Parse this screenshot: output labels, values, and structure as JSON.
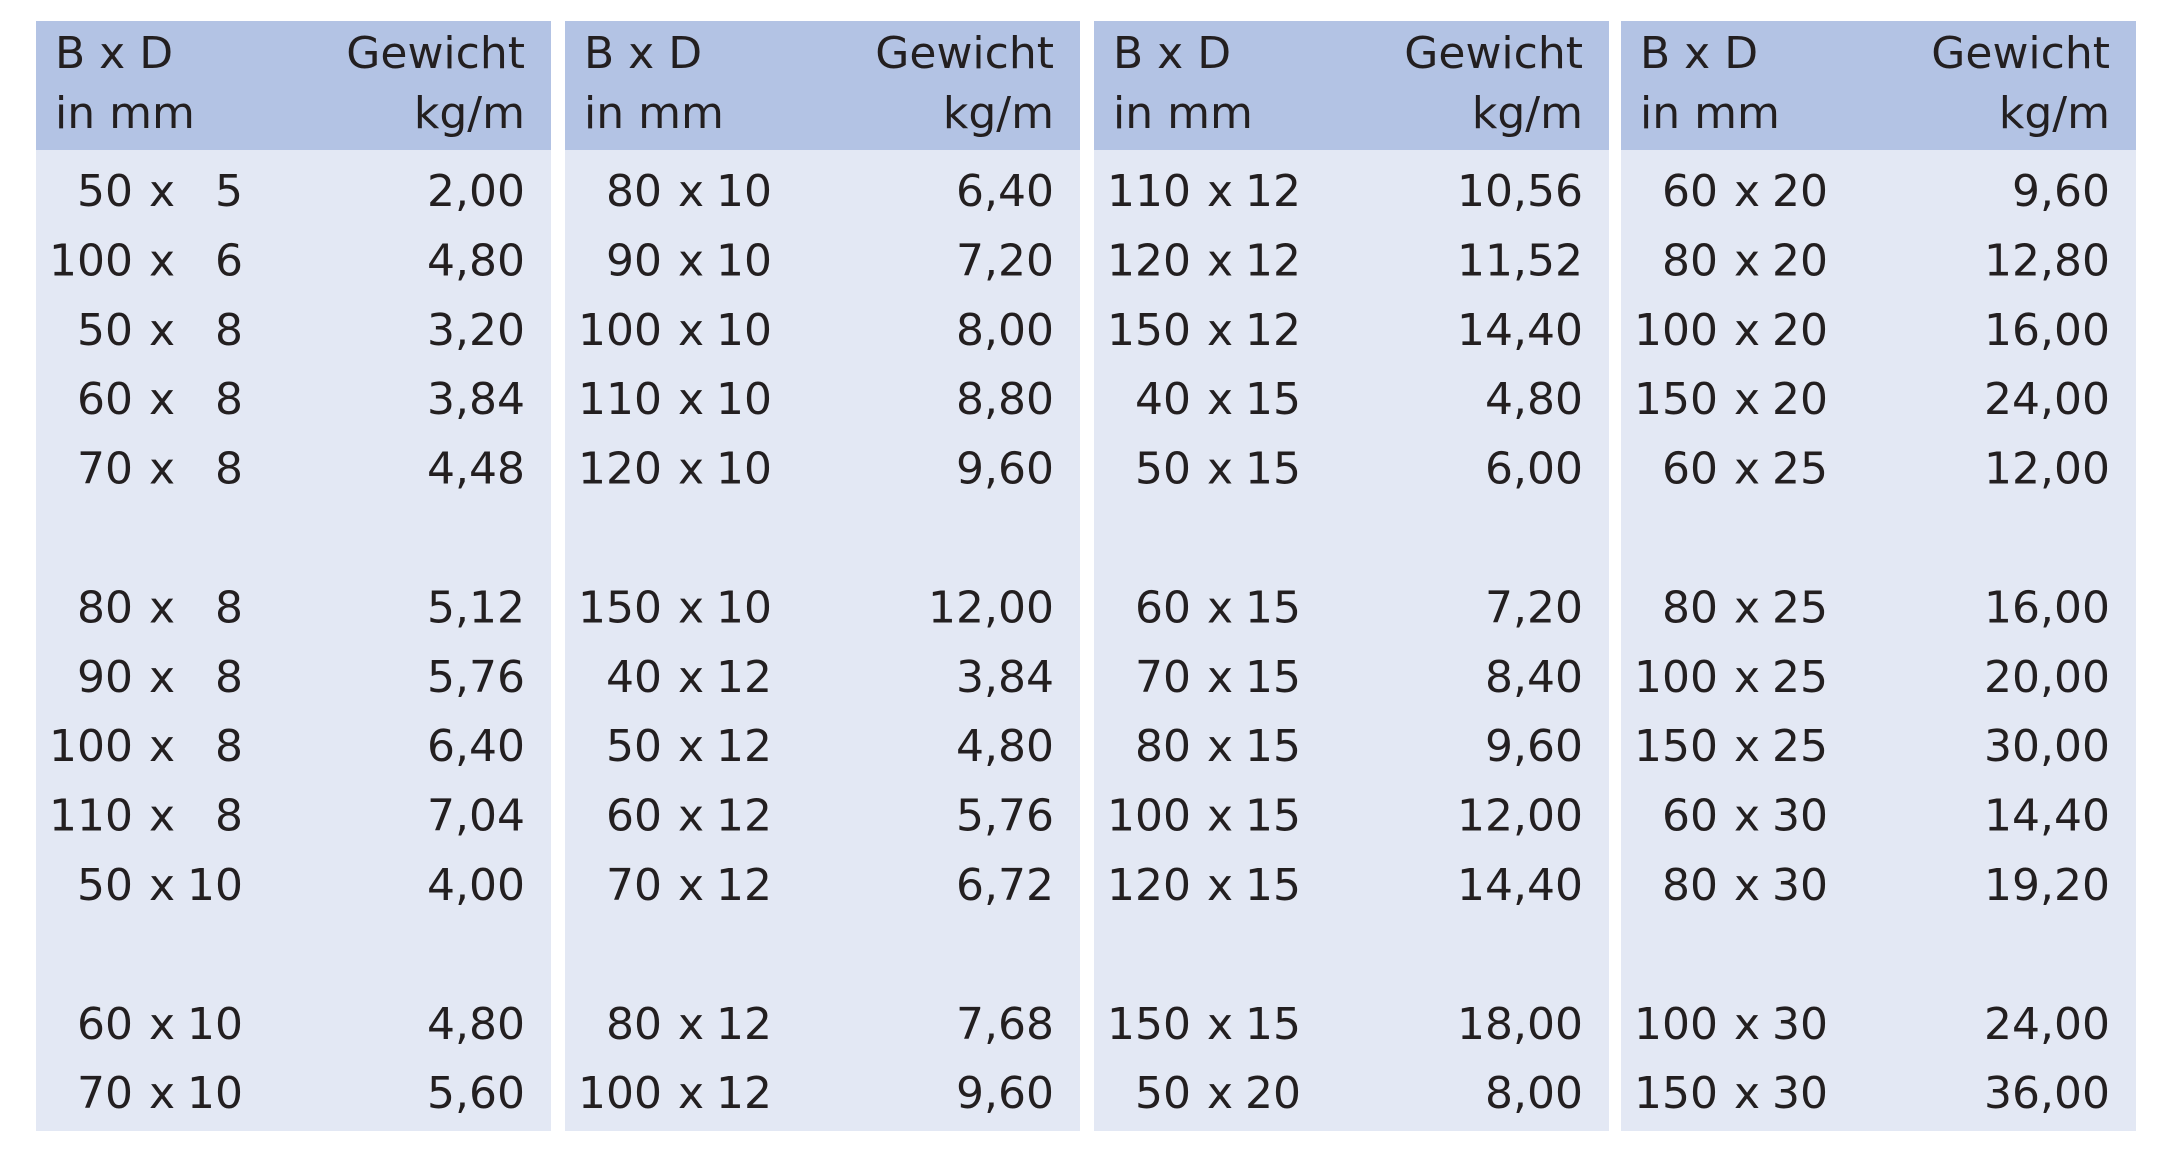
{
  "panels": [
    {
      "header": {
        "left": [
          "B x D",
          "in mm"
        ],
        "right": [
          "Gewicht",
          "kg/m"
        ]
      },
      "rows": [
        [
          "50",
          "x",
          "5",
          "2,00"
        ],
        [
          "100",
          "x",
          "6",
          "4,80"
        ],
        [
          "50",
          "x",
          "8",
          "3,20"
        ],
        [
          "60",
          "x",
          "8",
          "3,84"
        ],
        [
          "70",
          "x",
          "8",
          "4,48"
        ],
        [
          "80",
          "x",
          "8",
          "5,12"
        ],
        [
          "90",
          "x",
          "8",
          "5,76"
        ],
        [
          "100",
          "x",
          "8",
          "6,40"
        ],
        [
          "110",
          "x",
          "8",
          "7,04"
        ],
        [
          "50",
          "x",
          "10",
          "4,00"
        ],
        [
          "60",
          "x",
          "10",
          "4,80"
        ],
        [
          "70",
          "x",
          "10",
          "5,60"
        ]
      ]
    },
    {
      "header": {
        "left": [
          "B x D",
          "in mm"
        ],
        "right": [
          "Gewicht",
          "kg/m"
        ]
      },
      "rows": [
        [
          "80",
          "x",
          "10",
          "6,40"
        ],
        [
          "90",
          "x",
          "10",
          "7,20"
        ],
        [
          "100",
          "x",
          "10",
          "8,00"
        ],
        [
          "110",
          "x",
          "10",
          "8,80"
        ],
        [
          "120",
          "x",
          "10",
          "9,60"
        ],
        [
          "150",
          "x",
          "10",
          "12,00"
        ],
        [
          "40",
          "x",
          "12",
          "3,84"
        ],
        [
          "50",
          "x",
          "12",
          "4,80"
        ],
        [
          "60",
          "x",
          "12",
          "5,76"
        ],
        [
          "70",
          "x",
          "12",
          "6,72"
        ],
        [
          "80",
          "x",
          "12",
          "7,68"
        ],
        [
          "100",
          "x",
          "12",
          "9,60"
        ]
      ]
    },
    {
      "header": {
        "left": [
          "B x D",
          "in mm"
        ],
        "right": [
          "Gewicht",
          "kg/m"
        ]
      },
      "rows": [
        [
          "110",
          "x",
          "12",
          "10,56"
        ],
        [
          "120",
          "x",
          "12",
          "11,52"
        ],
        [
          "150",
          "x",
          "12",
          "14,40"
        ],
        [
          "40",
          "x",
          "15",
          "4,80"
        ],
        [
          "50",
          "x",
          "15",
          "6,00"
        ],
        [
          "60",
          "x",
          "15",
          "7,20"
        ],
        [
          "70",
          "x",
          "15",
          "8,40"
        ],
        [
          "80",
          "x",
          "15",
          "9,60"
        ],
        [
          "100",
          "x",
          "15",
          "12,00"
        ],
        [
          "120",
          "x",
          "15",
          "14,40"
        ],
        [
          "150",
          "x",
          "15",
          "18,00"
        ],
        [
          "50",
          "x",
          "20",
          "8,00"
        ]
      ]
    },
    {
      "header": {
        "left": [
          "B x D",
          "in mm"
        ],
        "right": [
          "Gewicht",
          "kg/m"
        ]
      },
      "rows": [
        [
          "60",
          "x",
          "20",
          "9,60"
        ],
        [
          "80",
          "x",
          "20",
          "12,80"
        ],
        [
          "100",
          "x",
          "20",
          "16,00"
        ],
        [
          "150",
          "x",
          "20",
          "24,00"
        ],
        [
          "60",
          "x",
          "25",
          "12,00"
        ],
        [
          "80",
          "x",
          "25",
          "16,00"
        ],
        [
          "100",
          "x",
          "25",
          "20,00"
        ],
        [
          "150",
          "x",
          "25",
          "30,00"
        ],
        [
          "60",
          "x",
          "30",
          "14,40"
        ],
        [
          "80",
          "x",
          "30",
          "19,20"
        ],
        [
          "100",
          "x",
          "30",
          "24,00"
        ],
        [
          "150",
          "x",
          "30",
          "36,00"
        ]
      ]
    }
  ]
}
